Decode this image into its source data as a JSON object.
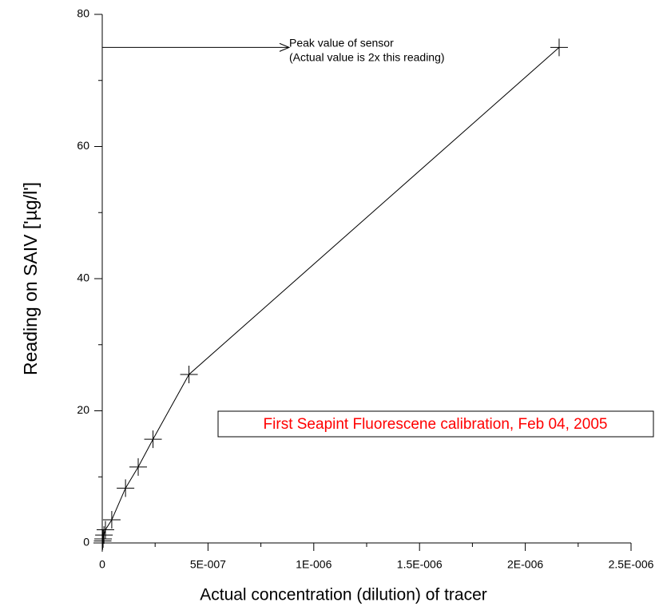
{
  "chart_data": {
    "type": "line",
    "xlabel": "Actual concentration (dilution) of tracer",
    "ylabel": "Reading on SAIV ['µg/l']",
    "x": [
      0,
      2e-09,
      4e-09,
      8e-09,
      1.5e-08,
      4.5e-08,
      1.1e-07,
      1.7e-07,
      2.4e-07,
      4.1e-07,
      2.16e-06
    ],
    "values": [
      0,
      0.3,
      0.6,
      1.2,
      2,
      3.5,
      8.3,
      11.5,
      15.7,
      25.5,
      75
    ],
    "color": "#000000",
    "marker": "plus",
    "xlim": [
      0,
      2.5e-06
    ],
    "ylim": [
      0,
      80
    ],
    "xticks": [
      0,
      {
        "value": 5e-07,
        "label": "5E-007"
      },
      {
        "value": 1e-06,
        "label": "1E-006"
      },
      {
        "value": 1.5e-06,
        "label": "1.5E-006"
      },
      {
        "value": 2e-06,
        "label": "2E-006"
      },
      {
        "value": 2.5e-06,
        "label": "2.5E-006"
      }
    ],
    "yticks": [
      0,
      20,
      40,
      60,
      80
    ],
    "annotations": [
      "Peak value of sensor",
      "(Actual value is 2x this reading)"
    ],
    "note": {
      "text": "First Seapint Fluorescene calibration, Feb 04, 2005",
      "color": "#ff0000"
    }
  }
}
